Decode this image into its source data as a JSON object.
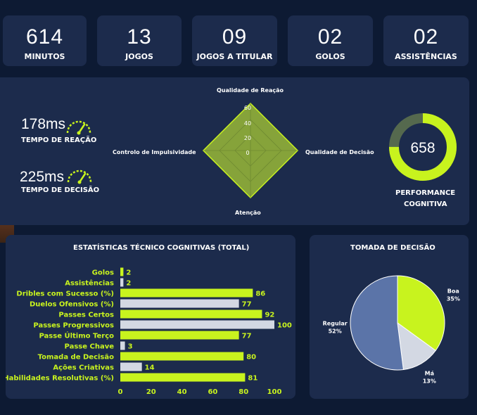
{
  "stats": [
    {
      "value": "614",
      "label": "MINUTOS"
    },
    {
      "value": "13",
      "label": "JOGOS"
    },
    {
      "value": "09",
      "label": "JOGOS A TITULAR"
    },
    {
      "value": "02",
      "label": "GOLOS"
    },
    {
      "value": "02",
      "label": "ASSISTÊNCIAS"
    }
  ],
  "reaction": {
    "value": "178ms",
    "label": "TEMPO DE REAÇÃO"
  },
  "decision": {
    "value": "225ms",
    "label": "TEMPO DE DECISÃO"
  },
  "radar": {
    "top": "Qualidade de Reação",
    "right": "Qualidade de Decisão",
    "bottom": "Atenção",
    "left": "Controlo de Impulsividade",
    "ticks": [
      "60",
      "40",
      "20",
      "0"
    ]
  },
  "cognitive": {
    "value": "658",
    "label_line1": "PERFORMANCE",
    "label_line2": "COGNITIVA"
  },
  "colors": {
    "accent": "#c8f31e",
    "grey": "#d3d8e3",
    "card": "#1c2b4c",
    "slate": "#5b74a8",
    "ring_bg": "#55694e"
  },
  "chart_data": [
    {
      "type": "bar",
      "title": "ESTATÍSTICAS TÉCNICO COGNITIVAS (TOTAL)",
      "orientation": "horizontal",
      "categories": [
        "Golos",
        "Assistências",
        "Dribles com Sucesso (%)",
        "Duelos Ofensivos (%)",
        "Passes Certos",
        "Passes Progressivos",
        "Passe Último Terço",
        "Passe Chave",
        "Tomada de Decisão",
        "Ações Criativas",
        "Habilidades Resolutivas (%)"
      ],
      "values": [
        2,
        2,
        86,
        77,
        92,
        100,
        77,
        3,
        80,
        14,
        81
      ],
      "bar_colors": [
        "accent",
        "grey",
        "accent",
        "grey",
        "accent",
        "grey",
        "accent",
        "grey",
        "accent",
        "grey",
        "accent"
      ],
      "xticks": [
        "0",
        "20",
        "40",
        "60",
        "80",
        "100"
      ],
      "xlim": [
        0,
        100
      ],
      "grid": false
    },
    {
      "type": "pie",
      "title": "TOMADA DE DECISÃO",
      "slices": [
        {
          "label": "Boa",
          "value": 35,
          "pct": "35%",
          "color": "#c8f31e"
        },
        {
          "label": "Má",
          "value": 13,
          "pct": "13%",
          "color": "#d3d8e3"
        },
        {
          "label": "Regular",
          "value": 52,
          "pct": "52%",
          "color": "#5b74a8"
        }
      ]
    }
  ]
}
